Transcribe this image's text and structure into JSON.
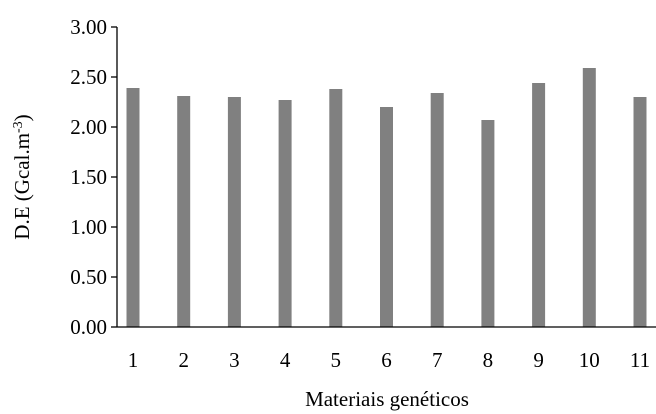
{
  "chart_data": {
    "type": "bar",
    "title": "",
    "xlabel": "Materiais genéticos",
    "ylabel_main": "D.E (Gcal.m",
    "ylabel_sup": "-3",
    "ylabel_close": ")",
    "categories": [
      "1",
      "2",
      "3",
      "4",
      "5",
      "6",
      "7",
      "8",
      "9",
      "10",
      "11"
    ],
    "values": [
      2.39,
      2.31,
      2.3,
      2.27,
      2.38,
      2.2,
      2.34,
      2.07,
      2.44,
      2.59,
      2.3
    ],
    "ylim": [
      0,
      3
    ],
    "yticks": [
      "0.00",
      "0.50",
      "1.00",
      "1.50",
      "2.00",
      "2.50",
      "3.00"
    ],
    "ytick_values": [
      0,
      0.5,
      1,
      1.5,
      2,
      2.5,
      3
    ],
    "bar_color": "#808080",
    "axis_color": "#000000",
    "grid": false,
    "legend": "none"
  }
}
